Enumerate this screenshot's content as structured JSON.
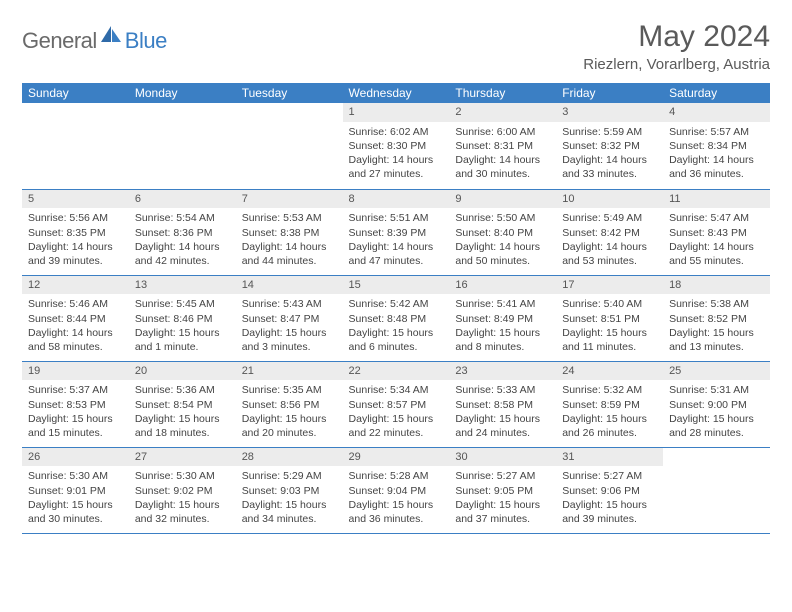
{
  "brand": {
    "general": "General",
    "blue": "Blue"
  },
  "title": "May 2024",
  "subtitle": "Riezlern, Vorarlberg, Austria",
  "colors": {
    "header_bg": "#3b7fc4",
    "header_text": "#ffffff",
    "daynum_bg": "#ececec",
    "border": "#3b7fc4",
    "body_text": "#444444",
    "title_text": "#5a5a5a",
    "logo_gray": "#6a6a6a",
    "logo_blue": "#3b7fc4"
  },
  "day_labels": [
    "Sunday",
    "Monday",
    "Tuesday",
    "Wednesday",
    "Thursday",
    "Friday",
    "Saturday"
  ],
  "weeks": [
    [
      {
        "n": "",
        "sr": "",
        "ss": "",
        "dl": ""
      },
      {
        "n": "",
        "sr": "",
        "ss": "",
        "dl": ""
      },
      {
        "n": "",
        "sr": "",
        "ss": "",
        "dl": ""
      },
      {
        "n": "1",
        "sr": "Sunrise: 6:02 AM",
        "ss": "Sunset: 8:30 PM",
        "dl": "Daylight: 14 hours and 27 minutes."
      },
      {
        "n": "2",
        "sr": "Sunrise: 6:00 AM",
        "ss": "Sunset: 8:31 PM",
        "dl": "Daylight: 14 hours and 30 minutes."
      },
      {
        "n": "3",
        "sr": "Sunrise: 5:59 AM",
        "ss": "Sunset: 8:32 PM",
        "dl": "Daylight: 14 hours and 33 minutes."
      },
      {
        "n": "4",
        "sr": "Sunrise: 5:57 AM",
        "ss": "Sunset: 8:34 PM",
        "dl": "Daylight: 14 hours and 36 minutes."
      }
    ],
    [
      {
        "n": "5",
        "sr": "Sunrise: 5:56 AM",
        "ss": "Sunset: 8:35 PM",
        "dl": "Daylight: 14 hours and 39 minutes."
      },
      {
        "n": "6",
        "sr": "Sunrise: 5:54 AM",
        "ss": "Sunset: 8:36 PM",
        "dl": "Daylight: 14 hours and 42 minutes."
      },
      {
        "n": "7",
        "sr": "Sunrise: 5:53 AM",
        "ss": "Sunset: 8:38 PM",
        "dl": "Daylight: 14 hours and 44 minutes."
      },
      {
        "n": "8",
        "sr": "Sunrise: 5:51 AM",
        "ss": "Sunset: 8:39 PM",
        "dl": "Daylight: 14 hours and 47 minutes."
      },
      {
        "n": "9",
        "sr": "Sunrise: 5:50 AM",
        "ss": "Sunset: 8:40 PM",
        "dl": "Daylight: 14 hours and 50 minutes."
      },
      {
        "n": "10",
        "sr": "Sunrise: 5:49 AM",
        "ss": "Sunset: 8:42 PM",
        "dl": "Daylight: 14 hours and 53 minutes."
      },
      {
        "n": "11",
        "sr": "Sunrise: 5:47 AM",
        "ss": "Sunset: 8:43 PM",
        "dl": "Daylight: 14 hours and 55 minutes."
      }
    ],
    [
      {
        "n": "12",
        "sr": "Sunrise: 5:46 AM",
        "ss": "Sunset: 8:44 PM",
        "dl": "Daylight: 14 hours and 58 minutes."
      },
      {
        "n": "13",
        "sr": "Sunrise: 5:45 AM",
        "ss": "Sunset: 8:46 PM",
        "dl": "Daylight: 15 hours and 1 minute."
      },
      {
        "n": "14",
        "sr": "Sunrise: 5:43 AM",
        "ss": "Sunset: 8:47 PM",
        "dl": "Daylight: 15 hours and 3 minutes."
      },
      {
        "n": "15",
        "sr": "Sunrise: 5:42 AM",
        "ss": "Sunset: 8:48 PM",
        "dl": "Daylight: 15 hours and 6 minutes."
      },
      {
        "n": "16",
        "sr": "Sunrise: 5:41 AM",
        "ss": "Sunset: 8:49 PM",
        "dl": "Daylight: 15 hours and 8 minutes."
      },
      {
        "n": "17",
        "sr": "Sunrise: 5:40 AM",
        "ss": "Sunset: 8:51 PM",
        "dl": "Daylight: 15 hours and 11 minutes."
      },
      {
        "n": "18",
        "sr": "Sunrise: 5:38 AM",
        "ss": "Sunset: 8:52 PM",
        "dl": "Daylight: 15 hours and 13 minutes."
      }
    ],
    [
      {
        "n": "19",
        "sr": "Sunrise: 5:37 AM",
        "ss": "Sunset: 8:53 PM",
        "dl": "Daylight: 15 hours and 15 minutes."
      },
      {
        "n": "20",
        "sr": "Sunrise: 5:36 AM",
        "ss": "Sunset: 8:54 PM",
        "dl": "Daylight: 15 hours and 18 minutes."
      },
      {
        "n": "21",
        "sr": "Sunrise: 5:35 AM",
        "ss": "Sunset: 8:56 PM",
        "dl": "Daylight: 15 hours and 20 minutes."
      },
      {
        "n": "22",
        "sr": "Sunrise: 5:34 AM",
        "ss": "Sunset: 8:57 PM",
        "dl": "Daylight: 15 hours and 22 minutes."
      },
      {
        "n": "23",
        "sr": "Sunrise: 5:33 AM",
        "ss": "Sunset: 8:58 PM",
        "dl": "Daylight: 15 hours and 24 minutes."
      },
      {
        "n": "24",
        "sr": "Sunrise: 5:32 AM",
        "ss": "Sunset: 8:59 PM",
        "dl": "Daylight: 15 hours and 26 minutes."
      },
      {
        "n": "25",
        "sr": "Sunrise: 5:31 AM",
        "ss": "Sunset: 9:00 PM",
        "dl": "Daylight: 15 hours and 28 minutes."
      }
    ],
    [
      {
        "n": "26",
        "sr": "Sunrise: 5:30 AM",
        "ss": "Sunset: 9:01 PM",
        "dl": "Daylight: 15 hours and 30 minutes."
      },
      {
        "n": "27",
        "sr": "Sunrise: 5:30 AM",
        "ss": "Sunset: 9:02 PM",
        "dl": "Daylight: 15 hours and 32 minutes."
      },
      {
        "n": "28",
        "sr": "Sunrise: 5:29 AM",
        "ss": "Sunset: 9:03 PM",
        "dl": "Daylight: 15 hours and 34 minutes."
      },
      {
        "n": "29",
        "sr": "Sunrise: 5:28 AM",
        "ss": "Sunset: 9:04 PM",
        "dl": "Daylight: 15 hours and 36 minutes."
      },
      {
        "n": "30",
        "sr": "Sunrise: 5:27 AM",
        "ss": "Sunset: 9:05 PM",
        "dl": "Daylight: 15 hours and 37 minutes."
      },
      {
        "n": "31",
        "sr": "Sunrise: 5:27 AM",
        "ss": "Sunset: 9:06 PM",
        "dl": "Daylight: 15 hours and 39 minutes."
      },
      {
        "n": "",
        "sr": "",
        "ss": "",
        "dl": ""
      }
    ]
  ]
}
